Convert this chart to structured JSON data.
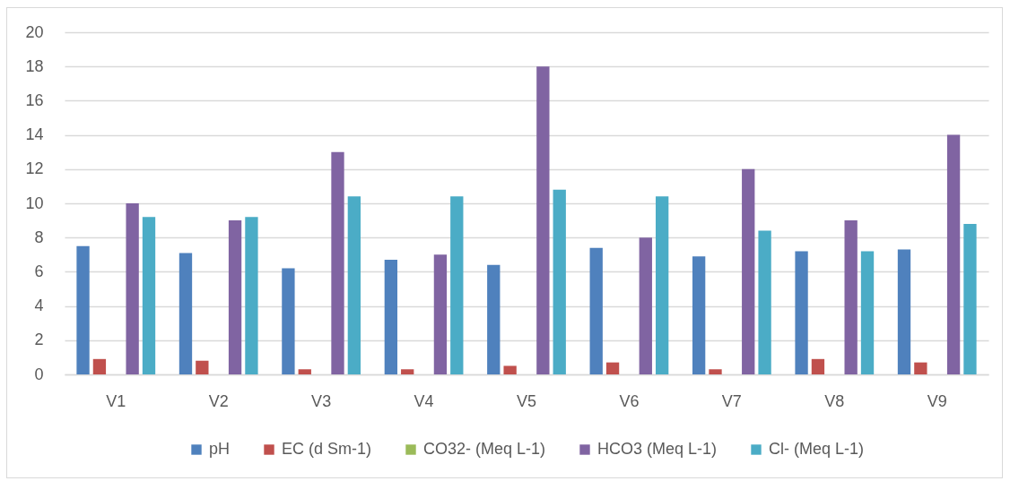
{
  "chart_data": {
    "type": "bar",
    "categories": [
      "V1",
      "V2",
      "V3",
      "V4",
      "V5",
      "V6",
      "V7",
      "V8",
      "V9"
    ],
    "series": [
      {
        "name": "pH",
        "color": "#4f81bd",
        "values": [
          7.5,
          7.1,
          6.2,
          6.7,
          6.4,
          7.4,
          6.9,
          7.2,
          7.3
        ]
      },
      {
        "name": "EC (d Sm-1)",
        "color": "#c0504d",
        "values": [
          0.9,
          0.8,
          0.3,
          0.3,
          0.5,
          0.7,
          0.3,
          0.9,
          0.7
        ]
      },
      {
        "name": "CO32- (Meq L-1)",
        "color": "#9bbb59",
        "values": [
          0,
          0,
          0,
          0,
          0,
          0,
          0,
          0,
          0
        ]
      },
      {
        "name": "HCO3 (Meq L-1)",
        "color": "#8064a2",
        "values": [
          10,
          9,
          13,
          7,
          18,
          8,
          12,
          9,
          14
        ]
      },
      {
        "name": "Cl- (Meq L-1)",
        "color": "#4bacc6",
        "values": [
          9.2,
          9.2,
          10.4,
          10.4,
          10.8,
          10.4,
          8.4,
          7.2,
          8.8
        ]
      }
    ],
    "ylim": [
      0,
      20
    ],
    "yticks": [
      0,
      2,
      4,
      6,
      8,
      10,
      12,
      14,
      16,
      18,
      20
    ],
    "grid": true,
    "legend": "bottom"
  }
}
